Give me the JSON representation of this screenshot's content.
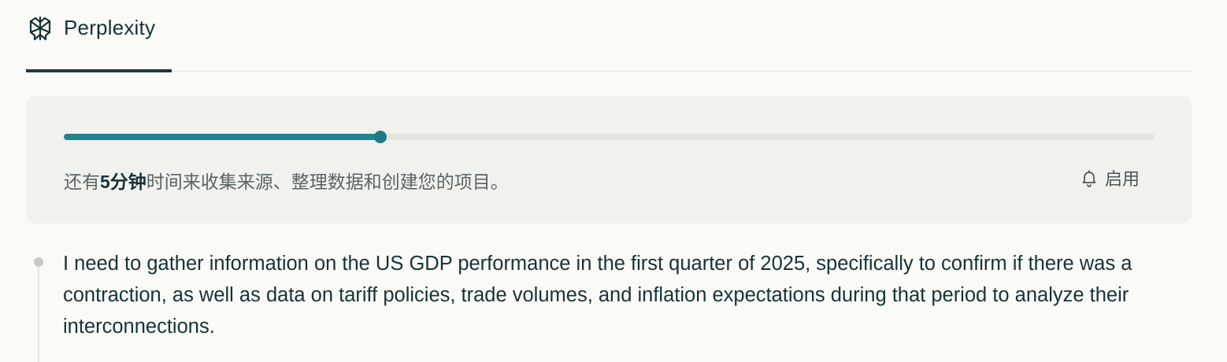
{
  "tab": {
    "label": "Perplexity",
    "icon": "perplexity-logo-icon"
  },
  "progress": {
    "fraction": 0.29,
    "status_prefix": "还有",
    "status_time": "5分钟",
    "status_suffix": "时间来收集来源、整理数据和创建您的项目。",
    "notify_icon": "bell-icon",
    "notify_label": "启用",
    "accent_color": "#208590"
  },
  "step": {
    "text": "I need to gather information on the US GDP performance in the first quarter of 2025, specifically to confirm if there was a contraction, as well as data on tariff policies, trade volumes, and inflation expectations during that period to analyze their interconnections."
  }
}
